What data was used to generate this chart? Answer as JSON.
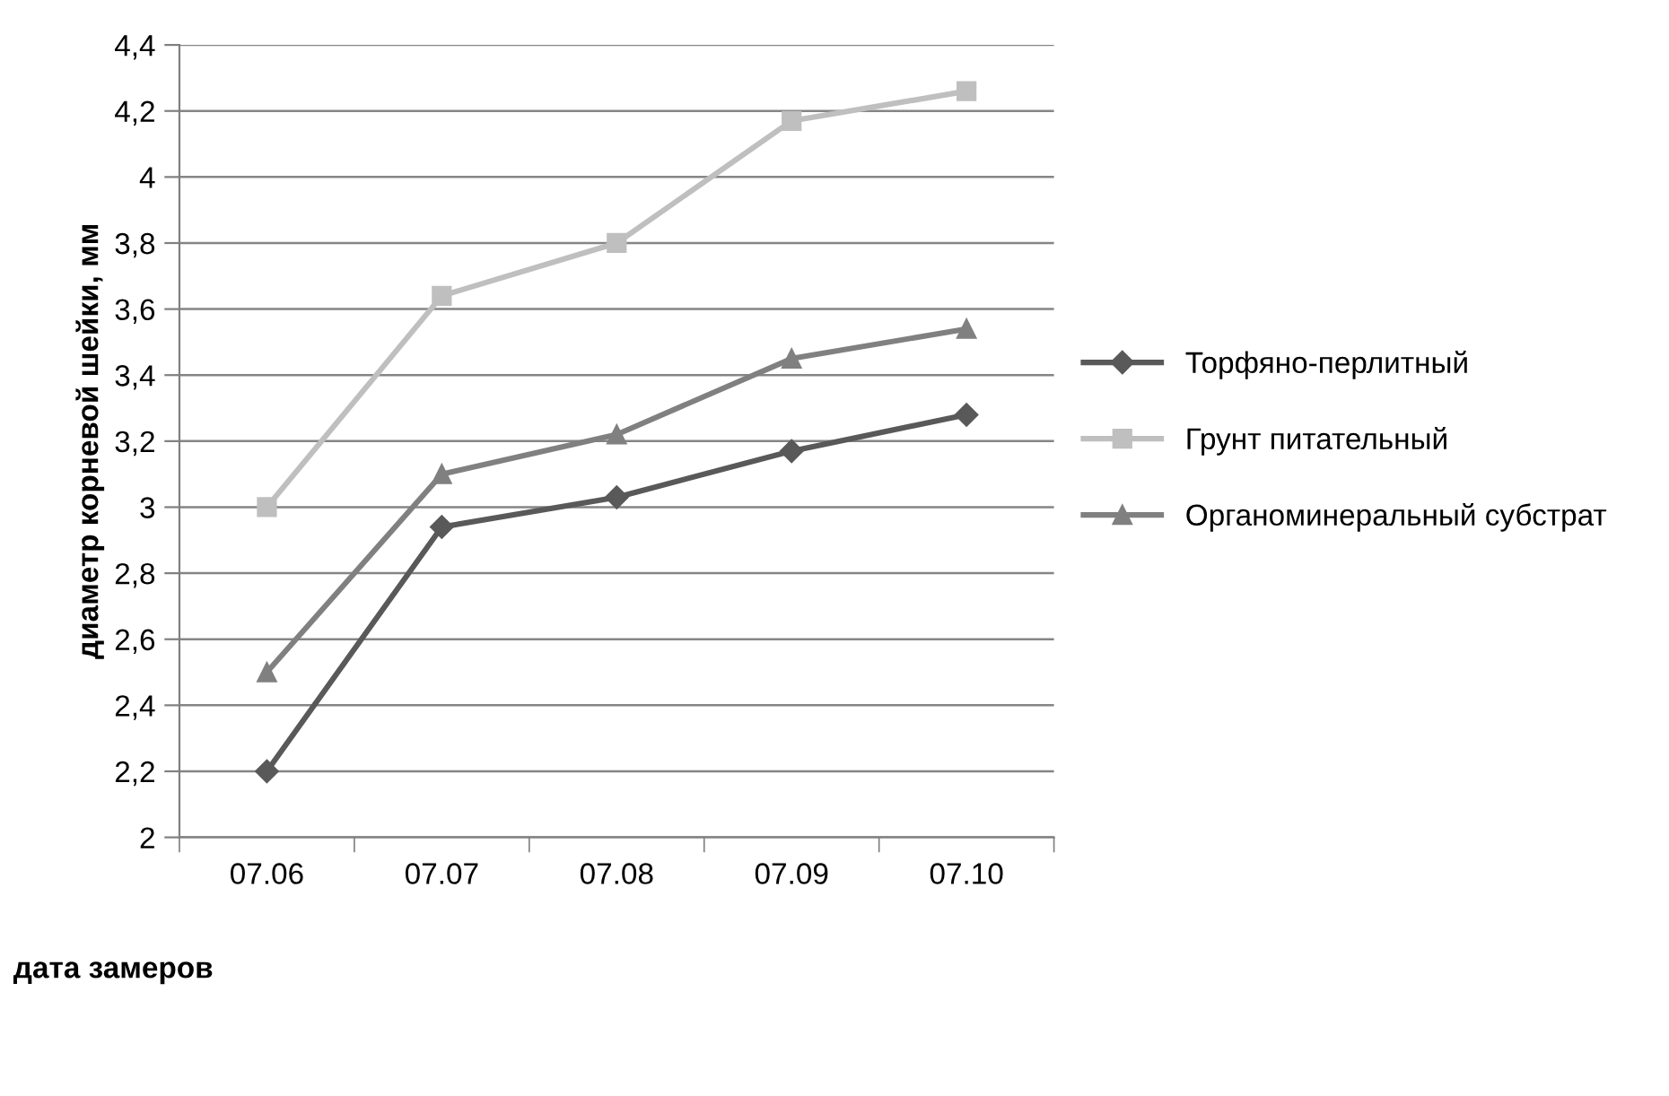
{
  "chart_data": {
    "type": "line",
    "xlabel": "дата замеров",
    "ylabel": "диаметр корневой шейки, мм",
    "categories": [
      "07.06",
      "07.07",
      "07.08",
      "07.09",
      "07.10"
    ],
    "series": [
      {
        "name": "Торфяно-перлитный",
        "color": "#595959",
        "marker": "diamond",
        "values": [
          2.2,
          2.94,
          3.03,
          3.17,
          3.28
        ]
      },
      {
        "name": "Грунт питательный",
        "color": "#bfbfbf",
        "marker": "square",
        "values": [
          3.0,
          3.64,
          3.8,
          4.17,
          4.26
        ]
      },
      {
        "name": "Органоминеральный субстрат",
        "color": "#808080",
        "marker": "triangle",
        "values": [
          2.5,
          3.1,
          3.22,
          3.45,
          3.54
        ]
      }
    ],
    "ylim": [
      2,
      4.4
    ],
    "yticks": [
      2,
      {
        "value": 2.2,
        "label": "2,2"
      },
      {
        "value": 2.4,
        "label": "2,4"
      },
      {
        "value": 2.6,
        "label": "2,6"
      },
      {
        "value": 2.8,
        "label": "2,8"
      },
      3,
      {
        "value": 3.2,
        "label": "3,2"
      },
      {
        "value": 3.4,
        "label": "3,4"
      },
      {
        "value": 3.6,
        "label": "3,6"
      },
      {
        "value": 3.8,
        "label": "3,8"
      },
      4,
      {
        "value": 4.2,
        "label": "4,2"
      },
      {
        "value": 4.4,
        "label": "4,4"
      }
    ],
    "grid": "y",
    "legend": "right",
    "line_style": "solid"
  }
}
